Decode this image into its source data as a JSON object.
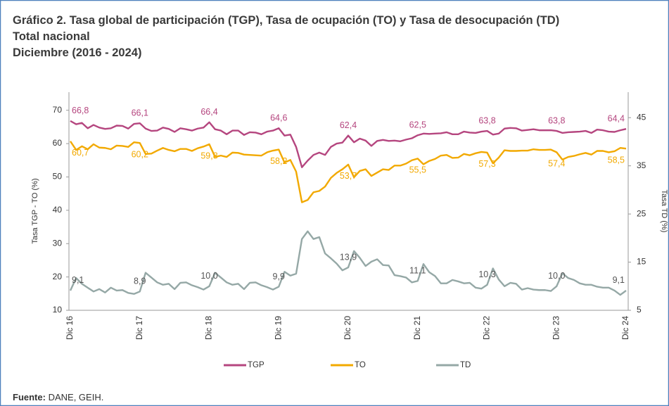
{
  "chart_data": {
    "type": "line",
    "title": "Gráfico 2. Tasa global de participación (TGP), Tasa de ocupación (TO) y Tasa de desocupación (TD)",
    "subtitle": "Total nacional",
    "subtitle2": "Diciembre (2016 - 2024)",
    "y_label": "Tasa TGP - TO (%)",
    "y2_label": "Tasa TD (%)",
    "source_label": "Fuente:",
    "source": "DANE, GEIH.",
    "legend": "bottom",
    "categories": [
      "Dic 16",
      null,
      null,
      null,
      null,
      null,
      null,
      null,
      null,
      null,
      null,
      null,
      "Dic 17",
      null,
      null,
      null,
      null,
      null,
      null,
      null,
      null,
      null,
      null,
      null,
      "Dic 18",
      null,
      null,
      null,
      null,
      null,
      null,
      null,
      null,
      null,
      null,
      null,
      "Dic 19",
      null,
      null,
      null,
      null,
      null,
      null,
      null,
      null,
      null,
      null,
      null,
      "Dic 20",
      null,
      null,
      null,
      null,
      null,
      null,
      null,
      null,
      null,
      null,
      null,
      "Dic 21",
      null,
      null,
      null,
      null,
      null,
      null,
      null,
      null,
      null,
      null,
      null,
      "Dic 22",
      null,
      null,
      null,
      null,
      null,
      null,
      null,
      null,
      null,
      null,
      null,
      "Dic 23",
      null,
      null,
      null,
      null,
      null,
      null,
      null,
      null,
      null,
      null,
      null,
      "Dic 24"
    ],
    "ylim": [
      10,
      75
    ],
    "yticks": [
      10,
      20,
      30,
      40,
      50,
      60,
      70
    ],
    "y2lim": [
      5,
      50
    ],
    "y2ticks": [
      5,
      15,
      25,
      35,
      45
    ],
    "series": [
      {
        "name": "TGP",
        "color": "#b5467f",
        "values": [
          66.8,
          65.8,
          66.2,
          64.6,
          65.6,
          64.8,
          64.4,
          64.6,
          65.4,
          65.3,
          64.5,
          65.9,
          66.1,
          64.5,
          63.8,
          63.9,
          64.8,
          64.4,
          63.5,
          64.6,
          64.3,
          63.9,
          64.5,
          64.8,
          66.4,
          64.3,
          63.9,
          62.8,
          63.9,
          63.9,
          62.6,
          63.4,
          63.3,
          62.8,
          63.6,
          63.9,
          64.6,
          62.4,
          62.7,
          59.0,
          52.9,
          54.9,
          56.6,
          57.3,
          56.6,
          59.0,
          60.0,
          60.3,
          62.4,
          60.4,
          61.5,
          60.9,
          59.3,
          60.8,
          61.1,
          60.8,
          60.9,
          60.7,
          61.2,
          61.6,
          62.5,
          63.0,
          62.9,
          63.0,
          63.1,
          63.4,
          62.8,
          62.8,
          63.6,
          63.3,
          63.2,
          63.6,
          63.8,
          62.7,
          63.0,
          64.5,
          64.7,
          64.6,
          63.9,
          64.1,
          64.3,
          64.0,
          64.0,
          64.0,
          63.8,
          63.2,
          63.4,
          63.5,
          63.6,
          63.8,
          63.2,
          64.2,
          64.0,
          63.6,
          63.5,
          64.0,
          64.4
        ],
        "value_labels": [
          "66,8",
          null,
          null,
          null,
          null,
          null,
          null,
          null,
          null,
          null,
          null,
          null,
          "66,1",
          null,
          null,
          null,
          null,
          null,
          null,
          null,
          null,
          null,
          null,
          null,
          "66,4",
          null,
          null,
          null,
          null,
          null,
          null,
          null,
          null,
          null,
          null,
          null,
          "64,6",
          null,
          null,
          null,
          null,
          null,
          null,
          null,
          null,
          null,
          null,
          null,
          "62,4",
          null,
          null,
          null,
          null,
          null,
          null,
          null,
          null,
          null,
          null,
          null,
          "62,5",
          null,
          null,
          null,
          null,
          null,
          null,
          null,
          null,
          null,
          null,
          null,
          "63,8",
          null,
          null,
          null,
          null,
          null,
          null,
          null,
          null,
          null,
          null,
          null,
          "63,8",
          null,
          null,
          null,
          null,
          null,
          null,
          null,
          null,
          null,
          null,
          null,
          "64,4"
        ]
      },
      {
        "name": "TO",
        "color": "#f2a900",
        "values": [
          60.7,
          58.1,
          59.2,
          58.3,
          59.8,
          58.8,
          58.7,
          58.3,
          59.4,
          59.3,
          59.0,
          60.4,
          60.2,
          56.9,
          57.0,
          57.9,
          58.7,
          58.1,
          57.7,
          58.4,
          58.4,
          57.8,
          58.6,
          59.1,
          59.8,
          56.0,
          56.4,
          56.0,
          57.3,
          57.2,
          56.7,
          56.6,
          56.5,
          56.4,
          57.4,
          57.9,
          58.2,
          54.3,
          55.1,
          51.6,
          42.4,
          43.1,
          45.4,
          45.8,
          47.1,
          49.7,
          51.2,
          52.3,
          53.7,
          49.9,
          51.8,
          52.3,
          50.3,
          51.3,
          52.3,
          52.1,
          53.4,
          53.4,
          54.0,
          55.0,
          55.5,
          53.8,
          54.8,
          55.4,
          56.4,
          56.6,
          55.7,
          55.8,
          56.9,
          56.5,
          57.1,
          57.5,
          57.3,
          54.1,
          55.8,
          58.0,
          57.8,
          57.8,
          57.9,
          57.9,
          58.3,
          58.1,
          58.1,
          58.2,
          57.4,
          55.2,
          56.0,
          56.3,
          56.8,
          57.2,
          56.7,
          57.8,
          57.8,
          57.4,
          57.7,
          58.7,
          58.5
        ],
        "value_labels": [
          "60,7",
          null,
          null,
          null,
          null,
          null,
          null,
          null,
          null,
          null,
          null,
          null,
          "60,2",
          null,
          null,
          null,
          null,
          null,
          null,
          null,
          null,
          null,
          null,
          null,
          "59,8",
          null,
          null,
          null,
          null,
          null,
          null,
          null,
          null,
          null,
          null,
          null,
          "58,2",
          null,
          null,
          null,
          null,
          null,
          null,
          null,
          null,
          null,
          null,
          null,
          "53,7",
          null,
          null,
          null,
          null,
          null,
          null,
          null,
          null,
          null,
          null,
          null,
          "55,5",
          null,
          null,
          null,
          null,
          null,
          null,
          null,
          null,
          null,
          null,
          null,
          "57,3",
          null,
          null,
          null,
          null,
          null,
          null,
          null,
          null,
          null,
          null,
          null,
          "57,4",
          null,
          null,
          null,
          null,
          null,
          null,
          null,
          null,
          null,
          null,
          null,
          "58,5"
        ]
      },
      {
        "name": "TD",
        "color": "#95a8a6",
        "axis": "y2",
        "values": [
          9.1,
          11.7,
          10.5,
          9.7,
          8.9,
          9.4,
          8.7,
          9.7,
          9.1,
          9.2,
          8.6,
          8.4,
          8.9,
          12.8,
          11.8,
          10.8,
          10.3,
          10.5,
          9.4,
          10.7,
          10.8,
          10.2,
          9.8,
          9.3,
          10.0,
          12.8,
          11.8,
          10.8,
          10.3,
          10.5,
          9.4,
          10.7,
          10.8,
          10.2,
          9.8,
          9.3,
          9.9,
          13.0,
          12.2,
          12.6,
          19.8,
          21.4,
          19.8,
          20.2,
          16.8,
          15.8,
          14.7,
          13.3,
          13.9,
          17.3,
          15.9,
          14.2,
          15.1,
          15.6,
          14.4,
          14.3,
          12.3,
          12.1,
          11.8,
          10.8,
          11.1,
          14.6,
          12.9,
          12.1,
          10.6,
          10.6,
          11.3,
          11.0,
          10.6,
          10.7,
          9.7,
          9.5,
          10.3,
          13.7,
          11.4,
          10.0,
          10.7,
          10.5,
          9.3,
          9.6,
          9.3,
          9.2,
          9.2,
          9.0,
          10.0,
          12.7,
          11.7,
          11.3,
          10.6,
          10.3,
          10.3,
          9.9,
          9.7,
          9.7,
          9.1,
          8.2,
          9.1
        ],
        "value_labels": [
          "9,1",
          null,
          null,
          null,
          null,
          null,
          null,
          null,
          null,
          null,
          null,
          null,
          "8,9",
          null,
          null,
          null,
          null,
          null,
          null,
          null,
          null,
          null,
          null,
          null,
          "10,0",
          null,
          null,
          null,
          null,
          null,
          null,
          null,
          null,
          null,
          null,
          null,
          "9,9",
          null,
          null,
          null,
          null,
          null,
          null,
          null,
          null,
          null,
          null,
          null,
          "13,9",
          null,
          null,
          null,
          null,
          null,
          null,
          null,
          null,
          null,
          null,
          null,
          "11,1",
          null,
          null,
          null,
          null,
          null,
          null,
          null,
          null,
          null,
          null,
          null,
          "10,3",
          null,
          null,
          null,
          null,
          null,
          null,
          null,
          null,
          null,
          null,
          null,
          "10,0",
          null,
          null,
          null,
          null,
          null,
          null,
          null,
          null,
          null,
          null,
          null,
          "9,1"
        ]
      }
    ]
  }
}
